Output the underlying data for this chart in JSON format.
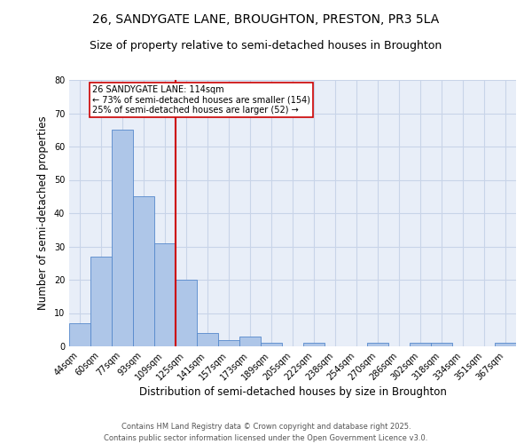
{
  "title_line1": "26, SANDYGATE LANE, BROUGHTON, PRESTON, PR3 5LA",
  "title_line2": "Size of property relative to semi-detached houses in Broughton",
  "xlabel": "Distribution of semi-detached houses by size in Broughton",
  "ylabel": "Number of semi-detached properties",
  "categories": [
    "44sqm",
    "60sqm",
    "77sqm",
    "93sqm",
    "109sqm",
    "125sqm",
    "141sqm",
    "157sqm",
    "173sqm",
    "189sqm",
    "205sqm",
    "222sqm",
    "238sqm",
    "254sqm",
    "270sqm",
    "286sqm",
    "302sqm",
    "318sqm",
    "334sqm",
    "351sqm",
    "367sqm"
  ],
  "values": [
    7,
    27,
    65,
    45,
    31,
    20,
    4,
    2,
    3,
    1,
    0,
    1,
    0,
    0,
    1,
    0,
    1,
    1,
    0,
    0,
    1
  ],
  "bar_color": "#aec6e8",
  "bar_edge_color": "#5588cc",
  "bar_width": 1.0,
  "red_line_x": 4.5,
  "vline_color": "#cc0000",
  "annotation_title": "26 SANDYGATE LANE: 114sqm",
  "annotation_line1": "← 73% of semi-detached houses are smaller (154)",
  "annotation_line2": "25% of semi-detached houses are larger (52) →",
  "annotation_box_color": "#ffffff",
  "annotation_box_edge": "#cc0000",
  "ylim": [
    0,
    80
  ],
  "yticks": [
    0,
    10,
    20,
    30,
    40,
    50,
    60,
    70,
    80
  ],
  "grid_color": "#c8d4e8",
  "background_color": "#e8eef8",
  "footer_line1": "Contains HM Land Registry data © Crown copyright and database right 2025.",
  "footer_line2": "Contains public sector information licensed under the Open Government Licence v3.0.",
  "title_fontsize": 10,
  "subtitle_fontsize": 9,
  "axis_label_fontsize": 8.5,
  "tick_fontsize": 7,
  "annotation_fontsize": 7,
  "footer_fontsize": 6
}
